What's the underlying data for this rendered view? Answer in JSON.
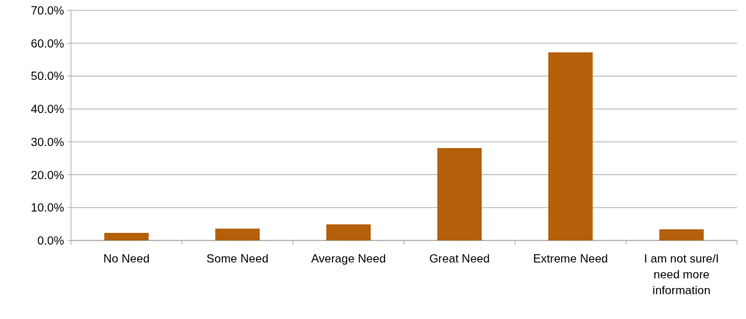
{
  "chart_data": {
    "type": "bar",
    "categories": [
      "No Need",
      "Some Need",
      "Average Need",
      "Great Need",
      "Extreme Need",
      "I am not sure/I need more information"
    ],
    "values": [
      2.3,
      3.6,
      4.9,
      28.1,
      57.2,
      3.4
    ],
    "color": "#b45f0a",
    "ylim": [
      0,
      70
    ],
    "yticks": [
      {
        "value": 0,
        "label": "0.0%"
      },
      {
        "value": 10,
        "label": "10.0%"
      },
      {
        "value": 20,
        "label": "20.0%"
      },
      {
        "value": 30,
        "label": "30.0%"
      },
      {
        "value": 40,
        "label": "40.0%"
      },
      {
        "value": 50,
        "label": "50.0%"
      },
      {
        "value": 60,
        "label": "60.0%"
      },
      {
        "value": 70,
        "label": "70.0%"
      }
    ],
    "grid": "y"
  }
}
